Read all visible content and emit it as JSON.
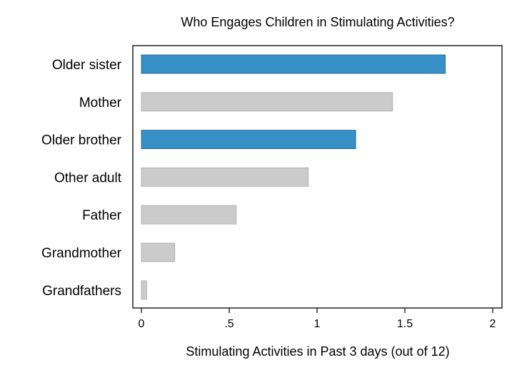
{
  "chart_data": {
    "type": "bar",
    "orientation": "horizontal",
    "title": "Who Engages Children in Stimulating Activities?",
    "xlabel": "Stimulating Activities in Past 3 days (out of 12)",
    "ylabel": "",
    "categories": [
      "Older sister",
      "Mother",
      "Older brother",
      "Other adult",
      "Father",
      "Grandmother",
      "Grandfathers"
    ],
    "values": [
      1.73,
      1.43,
      1.22,
      0.95,
      0.54,
      0.19,
      0.03
    ],
    "highlight": [
      true,
      false,
      true,
      false,
      false,
      false,
      false
    ],
    "xlim": [
      0,
      2
    ],
    "xticks": [
      {
        "value": 0,
        "label": "0"
      },
      {
        "value": 0.5,
        "label": ".5"
      },
      {
        "value": 1,
        "label": "1"
      },
      {
        "value": 1.5,
        "label": "1.5"
      },
      {
        "value": 2,
        "label": "2"
      }
    ],
    "colors": {
      "highlight": "#368fc5",
      "default": "#cbcbcb",
      "highlight_stroke": "#1f5f86",
      "default_stroke": "#a8a8a8"
    },
    "grid": false,
    "legend": "none"
  }
}
